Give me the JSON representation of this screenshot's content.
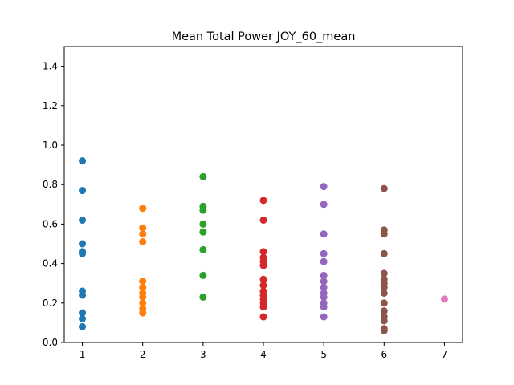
{
  "chart_data": {
    "type": "scatter",
    "title": "Mean Total Power JOY_60_mean",
    "xlabel": "",
    "ylabel": "",
    "xlim": [
      0.7,
      7.3
    ],
    "ylim": [
      0.0,
      1.5
    ],
    "x_ticks": [
      "1",
      "2",
      "3",
      "4",
      "5",
      "6",
      "7"
    ],
    "y_ticks": [
      "0.0",
      "0.2",
      "0.4",
      "0.6",
      "0.8",
      "1.0",
      "1.2",
      "1.4"
    ],
    "grid": false,
    "legend": "none",
    "series": [
      {
        "x": 1,
        "color": "#1f77b4",
        "values": [
          0.92,
          0.77,
          0.62,
          0.5,
          0.46,
          0.45,
          0.26,
          0.24,
          0.15,
          0.12,
          0.08
        ]
      },
      {
        "x": 2,
        "color": "#ff7f0e",
        "values": [
          0.68,
          0.58,
          0.55,
          0.51,
          0.31,
          0.28,
          0.25,
          0.23,
          0.2,
          0.17,
          0.15
        ]
      },
      {
        "x": 3,
        "color": "#2ca02c",
        "values": [
          0.84,
          0.69,
          0.67,
          0.6,
          0.56,
          0.47,
          0.34,
          0.23
        ]
      },
      {
        "x": 4,
        "color": "#d62728",
        "values": [
          0.72,
          0.62,
          0.46,
          0.43,
          0.41,
          0.39,
          0.32,
          0.29,
          0.26,
          0.24,
          0.22,
          0.2,
          0.18,
          0.13
        ]
      },
      {
        "x": 5,
        "color": "#9467bd",
        "values": [
          0.79,
          0.7,
          0.55,
          0.45,
          0.41,
          0.34,
          0.31,
          0.28,
          0.25,
          0.23,
          0.2,
          0.18,
          0.13
        ]
      },
      {
        "x": 6,
        "color": "#8c564b",
        "values": [
          0.78,
          0.57,
          0.55,
          0.45,
          0.35,
          0.32,
          0.3,
          0.28,
          0.25,
          0.2,
          0.16,
          0.13,
          0.11,
          0.07,
          0.06
        ]
      },
      {
        "x": 7,
        "color": "#e377c2",
        "values": [
          0.22
        ]
      }
    ]
  }
}
